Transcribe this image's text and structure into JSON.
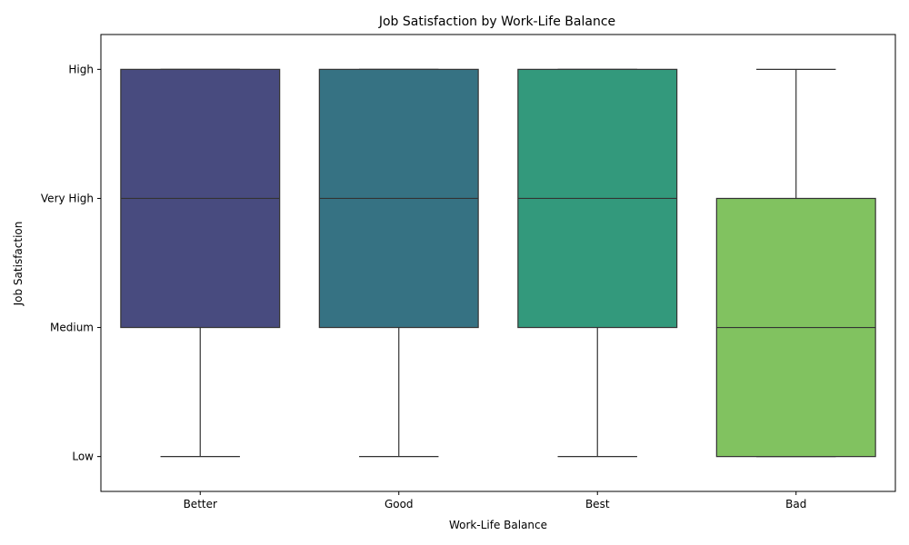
{
  "chart_data": {
    "type": "box",
    "title": "Job Satisfaction by Work-Life Balance",
    "xlabel": "Work-Life Balance",
    "ylabel": "Job Satisfaction",
    "y_ticks": [
      "Low",
      "Medium",
      "Very High",
      "High"
    ],
    "ylim": [
      -0.27,
      3.27
    ],
    "grid": false,
    "legend": "none",
    "categories": [
      "Better",
      "Good",
      "Best",
      "Bad"
    ],
    "colors": [
      "#484b7f",
      "#367283",
      "#33997c",
      "#81c260"
    ],
    "boxes": [
      {
        "category": "Better",
        "whisker_low": 0,
        "q1": 1,
        "median": 2,
        "q3": 3,
        "whisker_high": 3
      },
      {
        "category": "Good",
        "whisker_low": 0,
        "q1": 1,
        "median": 2,
        "q3": 3,
        "whisker_high": 3
      },
      {
        "category": "Best",
        "whisker_low": 0,
        "q1": 1,
        "median": 2,
        "q3": 3,
        "whisker_high": 3
      },
      {
        "category": "Bad",
        "whisker_low": 0,
        "q1": 0,
        "median": 1,
        "q3": 2,
        "whisker_high": 3
      }
    ]
  }
}
